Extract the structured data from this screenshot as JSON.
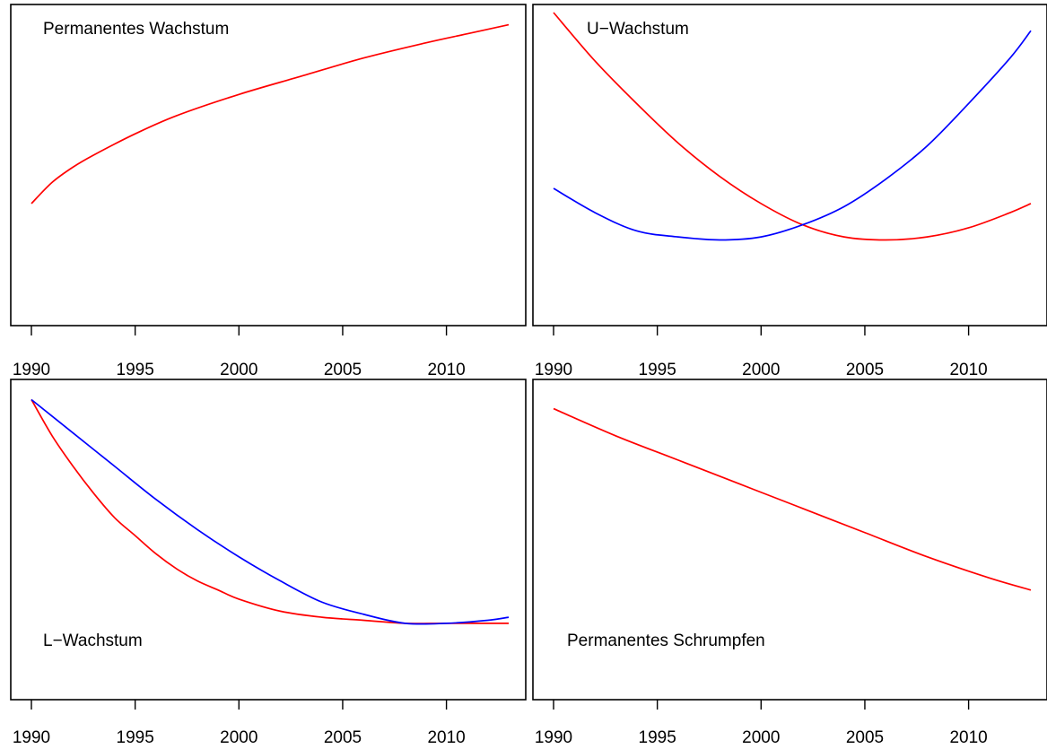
{
  "chart_data": [
    {
      "type": "line",
      "title": "Permanentes Wachstum",
      "x_ticks": [
        "1990",
        "1995",
        "2000",
        "2005",
        "2010"
      ],
      "xlim": [
        1990,
        2013
      ],
      "ylim": [
        0,
        1
      ],
      "y_axis_shown": false,
      "series": [
        {
          "color": "#ff0000",
          "x": [
            1990,
            1991,
            1992,
            1993,
            1995,
            1997,
            2000,
            2003,
            2006,
            2009,
            2011,
            2013
          ],
          "y": [
            0.37,
            0.44,
            0.49,
            0.53,
            0.6,
            0.66,
            0.73,
            0.79,
            0.85,
            0.9,
            0.93,
            0.96
          ]
        }
      ]
    },
    {
      "type": "line",
      "title": "U−Wachstum",
      "x_ticks": [
        "1990",
        "1995",
        "2000",
        "2005",
        "2010"
      ],
      "xlim": [
        1990,
        2013
      ],
      "ylim": [
        0,
        1
      ],
      "y_axis_shown": false,
      "series": [
        {
          "color": "#ff0000",
          "x": [
            1990,
            1992,
            1994,
            1996,
            1998,
            2000,
            2002,
            2004,
            2006,
            2008,
            2010,
            2012,
            2013
          ],
          "y": [
            1.0,
            0.84,
            0.7,
            0.57,
            0.46,
            0.37,
            0.3,
            0.26,
            0.25,
            0.26,
            0.29,
            0.34,
            0.37
          ]
        },
        {
          "color": "#0000ff",
          "x": [
            1990,
            1992,
            1994,
            1996,
            1998,
            2000,
            2002,
            2004,
            2006,
            2008,
            2010,
            2012,
            2013
          ],
          "y": [
            0.42,
            0.34,
            0.28,
            0.26,
            0.25,
            0.26,
            0.3,
            0.36,
            0.45,
            0.56,
            0.7,
            0.85,
            0.94
          ]
        }
      ]
    },
    {
      "type": "line",
      "title": "L−Wachstum",
      "x_ticks": [
        "1990",
        "1995",
        "2000",
        "2005",
        "2010"
      ],
      "xlim": [
        1990,
        2013
      ],
      "ylim": [
        0,
        1
      ],
      "y_axis_shown": false,
      "series": [
        {
          "color": "#ff0000",
          "x": [
            1990,
            1991,
            1992,
            1993,
            1994,
            1995,
            1996,
            1997,
            1998,
            1999,
            2000,
            2002,
            2004,
            2006,
            2008,
            2010,
            2013
          ],
          "y": [
            0.96,
            0.84,
            0.74,
            0.65,
            0.57,
            0.51,
            0.45,
            0.4,
            0.36,
            0.33,
            0.3,
            0.26,
            0.24,
            0.23,
            0.22,
            0.22,
            0.22
          ]
        },
        {
          "color": "#0000ff",
          "x": [
            1990,
            1992,
            1994,
            1996,
            1998,
            2000,
            2002,
            2004,
            2006,
            2008,
            2010,
            2012,
            2013
          ],
          "y": [
            0.96,
            0.85,
            0.74,
            0.63,
            0.53,
            0.44,
            0.36,
            0.29,
            0.25,
            0.22,
            0.22,
            0.23,
            0.24
          ]
        }
      ]
    },
    {
      "type": "line",
      "title": "Permanentes Schrumpfen",
      "x_ticks": [
        "1990",
        "1995",
        "2000",
        "2005",
        "2010"
      ],
      "xlim": [
        1990,
        2013
      ],
      "ylim": [
        0,
        1
      ],
      "y_axis_shown": false,
      "series": [
        {
          "color": "#ff0000",
          "x": [
            1990,
            1993,
            1996,
            1999,
            2002,
            2005,
            2008,
            2011,
            2013
          ],
          "y": [
            0.93,
            0.84,
            0.76,
            0.68,
            0.6,
            0.52,
            0.44,
            0.37,
            0.33
          ]
        }
      ]
    }
  ]
}
